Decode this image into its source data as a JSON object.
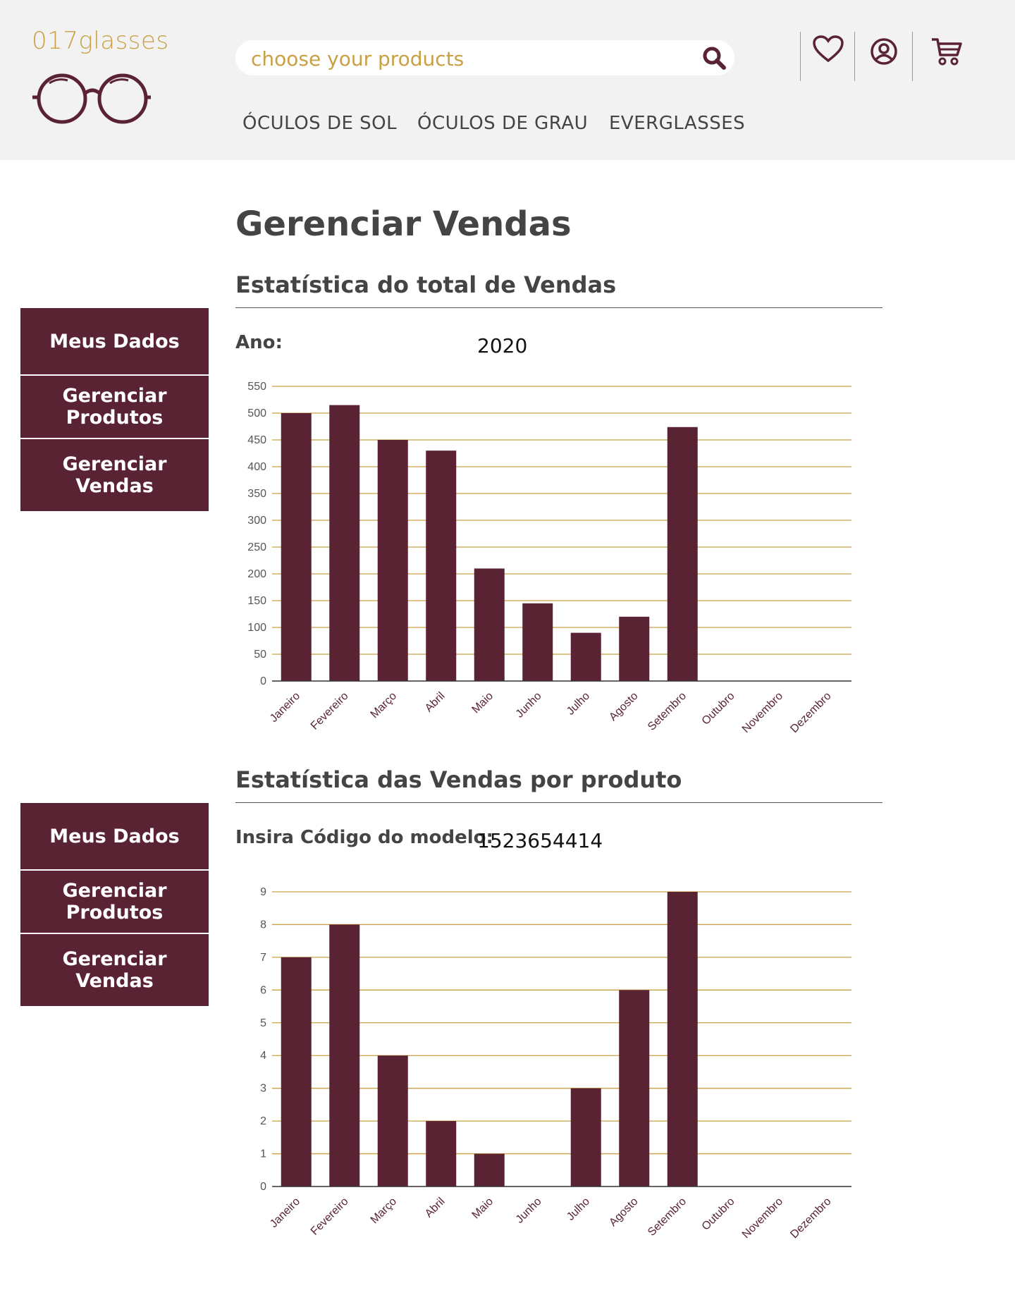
{
  "header": {
    "logo_text": "017glasses",
    "search_placeholder": "choose your products",
    "nav": [
      "ÓCULOS DE SOL",
      "ÓCULOS DE GRAU",
      "EVERGLASSES"
    ],
    "icons": [
      "heart-icon",
      "user-icon",
      "cart-icon"
    ]
  },
  "colors": {
    "accent": "#c9a043",
    "brand": "#5a2333",
    "header_bg": "#f2f2f2",
    "text": "#444444"
  },
  "page": {
    "title": "Gerenciar Vendas"
  },
  "sidebar": {
    "items": [
      "Meus Dados",
      "Gerenciar Produtos",
      "Gerenciar Vendas"
    ]
  },
  "section1": {
    "title": "Estatística do total de Vendas",
    "label": "Ano:",
    "value": "2020"
  },
  "section2": {
    "title": "Estatística das Vendas por produto",
    "label": "Insira Código do modelo:",
    "value": "1523654414"
  },
  "chart_data": [
    {
      "type": "bar",
      "categories": [
        "Janeiro",
        "Fevereiro",
        "Março",
        "Abril",
        "Maio",
        "Junho",
        "Julho",
        "Agosto",
        "Setembro",
        "Outubro",
        "Novembro",
        "Dezembro"
      ],
      "values": [
        500,
        515,
        450,
        430,
        210,
        145,
        90,
        120,
        474,
        0,
        0,
        0
      ],
      "ylim": [
        0,
        550
      ],
      "yticks": [
        0,
        50,
        100,
        150,
        200,
        250,
        300,
        350,
        400,
        450,
        500,
        550
      ],
      "grid": true,
      "bar_color": "#5a2333",
      "grid_color": "#c9a043"
    },
    {
      "type": "bar",
      "categories": [
        "Janeiro",
        "Fevereiro",
        "Março",
        "Abril",
        "Maio",
        "Junho",
        "Julho",
        "Agosto",
        "Setembro",
        "Outubro",
        "Novembro",
        "Dezembro"
      ],
      "values": [
        7,
        8,
        4,
        2,
        1,
        0,
        3,
        6,
        9,
        0,
        0,
        0
      ],
      "ylim": [
        0,
        9
      ],
      "yticks": [
        0,
        1,
        2,
        3,
        4,
        5,
        6,
        7,
        8,
        9
      ],
      "grid": true,
      "bar_color": "#5a2333",
      "grid_color": "#c9a043"
    }
  ]
}
